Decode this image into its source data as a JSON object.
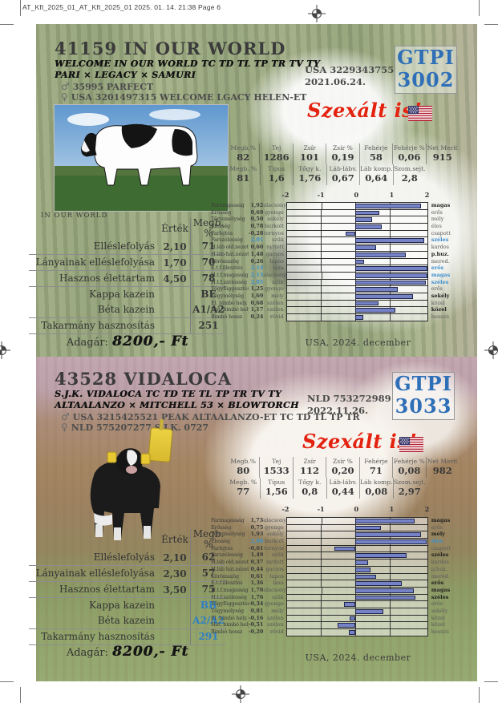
{
  "print_header": "AT_Kft_2025_01_AT_Kft_2025_01  2025. 01. 14.  21:38  Page 6",
  "symbols": {
    "male": "♂",
    "female": "♀"
  },
  "bulls": [
    {
      "title": "41159 IN OUR WORLD",
      "pedigree_line1": "WELCOME IN OUR WORLD TC TD TL TP TR TV TY",
      "pedigree_line2": "PARI × LEGACY × SAMURI",
      "sire": "35995 PARFECT",
      "dam": "USA 3201497315 WELCOME LGACY HELEN-ET",
      "registration": "USA 3229343755",
      "birth_date": "2021.06.24.",
      "gtpi_label": "GTPI",
      "gtpi_value": "3002",
      "sexed_note": "Szexált is!",
      "photo_caption": "IN OUR WORLD",
      "info": {
        "header_ertek": "Érték",
        "header_megb": "Megb. %",
        "rows": [
          {
            "label": "Elléslefolyás",
            "ertek": "2,10",
            "megb": "71",
            "rc": "rule",
            "vc": ""
          },
          {
            "label": "Lányainak elléslefolyása",
            "ertek": "1,70",
            "megb": "70",
            "rc": "rule",
            "vc": ""
          },
          {
            "label": "Hasznos élettartam",
            "ertek": "4,50",
            "megb": "78",
            "rc": "rule",
            "vc": ""
          },
          {
            "label": "Kappa kazein",
            "ertek": "",
            "megb": "BE",
            "rc": "",
            "vc": ""
          },
          {
            "label": "Béta kazein",
            "ertek": "",
            "megb": "A1/A2",
            "rc": "rule",
            "vc": ""
          },
          {
            "label": "Takarmány hasznosítás",
            "ertek": "",
            "megb": "251",
            "rc": "rule",
            "vc": ""
          }
        ],
        "price_label": "Adagár:",
        "price_value": "8200,- Ft"
      },
      "stats": {
        "row1": [
          {
            "label": "Megb.%",
            "value": "82"
          },
          {
            "label": "Tej",
            "value": "1286"
          },
          {
            "label": "Zsír",
            "value": "101"
          },
          {
            "label": "Zsír %",
            "value": "0,19"
          },
          {
            "label": "Fehérje",
            "value": "58"
          },
          {
            "label": "Fehérje %",
            "value": "0,06"
          },
          {
            "label": "Net Merit",
            "value": "915"
          }
        ],
        "row2": [
          {
            "label": "Megb. %",
            "value": "81"
          },
          {
            "label": "Típus",
            "value": "1,6"
          },
          {
            "label": "Tőgy k.",
            "value": "1,76"
          },
          {
            "label": "Láb-lábv.",
            "value": "0,67"
          },
          {
            "label": "Láb komp.",
            "value": "0,64"
          },
          {
            "label": "Szom.sejt.",
            "value": "2,8"
          }
        ]
      },
      "chart": {
        "type": "bar",
        "ticks": [
          "-2",
          "-1",
          "0",
          "1",
          "2"
        ],
        "xlim": [
          -2,
          2.1
        ],
        "caption": "USA, 2024. december",
        "rows": [
          {
            "name": "Farmagasság",
            "value_text": "1,92",
            "value": 1.92,
            "low": "alacsony",
            "high": "magas",
            "emph": "bold"
          },
          {
            "name": "Erősség",
            "value_text": "0,69",
            "value": 0.69,
            "low": "gyenge",
            "high": "erős",
            "emph": ""
          },
          {
            "name": "Törzsmélység",
            "value_text": "0,50",
            "value": 0.5,
            "low": "sekély",
            "high": "mély",
            "emph": ""
          },
          {
            "name": "Élesség",
            "value_text": "0,78",
            "value": 0.78,
            "low": "burkolt",
            "high": "éles",
            "emph": ""
          },
          {
            "name": "Farlejtés",
            "value_text": "-0,28",
            "value": -0.28,
            "low": "tornyos",
            "high": "csapott",
            "emph": ""
          },
          {
            "name": "Farszélesség",
            "value_text": "2,01",
            "value": 2.01,
            "low": "szűk",
            "high": "széles",
            "emph": "blue"
          },
          {
            "name": "H.láb old.nézet",
            "value_text": "0,60",
            "value": 0.6,
            "low": "nyitott",
            "high": "kardos",
            "emph": ""
          },
          {
            "name": "H.láb hát.nézet",
            "value_text": "1,48",
            "value": 1.48,
            "low": "gacsos",
            "high": "p.huz.",
            "emph": "bold"
          },
          {
            "name": "Körömszög",
            "value_text": "0,26",
            "value": 0.26,
            "low": "lapos",
            "high": "mered.",
            "emph": ""
          },
          {
            "name": "É.t.f.illesztés",
            "value_text": "2,14",
            "value": 2.14,
            "low": "laza",
            "high": "erős",
            "emph": "blue"
          },
          {
            "name": "H.t.f.magasság",
            "value_text": "2,13",
            "value": 2.13,
            "low": "alacsony",
            "high": "magas",
            "emph": "blue"
          },
          {
            "name": "H.t.f.szélesség",
            "value_text": "2,05",
            "value": 2.05,
            "low": "szűk",
            "high": "széles",
            "emph": "blue"
          },
          {
            "name": "Tőgyfüggesztés",
            "value_text": "1,25",
            "value": 1.25,
            "low": "gyenge",
            "high": "erős",
            "emph": ""
          },
          {
            "name": "Tőgymélység",
            "value_text": "1,69",
            "value": 1.69,
            "low": "mély",
            "high": "sekély",
            "emph": "bold"
          },
          {
            "name": "El. bimbó hely.",
            "value_text": "0,68",
            "value": 0.68,
            "low": "szélen",
            "high": "közel",
            "emph": ""
          },
          {
            "name": "Hát. bimbó hely.",
            "value_text": "1,17",
            "value": 1.17,
            "low": "szélen",
            "high": "közel",
            "emph": "bold"
          },
          {
            "name": "Bimbó hossz",
            "value_text": "0,24",
            "value": 0.24,
            "low": "rövid",
            "high": "hosszú",
            "emph": ""
          }
        ]
      }
    },
    {
      "title": "43528 VIDALOCA",
      "pedigree_line1": "S.J.K. VIDALOCA TC TD TE TL TP TR TV TY",
      "pedigree_line2": "ALTAALANZO × MITCHELL 53 × BLOWTORCH",
      "sire": "USA 3215425521 PEAK ALTAALANZO-ET TC TD TL TP TR",
      "dam": "NLD 575207277 S.J.K. 0727",
      "registration": "NLD 753272989",
      "birth_date": "2022.11.26.",
      "gtpi_label": "GTPI",
      "gtpi_value": "3033",
      "sexed_note": "Szexált is!",
      "photo_caption": "",
      "info": {
        "header_ertek": "Érték",
        "header_megb": "Megb. %",
        "rows": [
          {
            "label": "Elléslefolyás",
            "ertek": "2,10",
            "megb": "62",
            "rc": "rule",
            "vc": ""
          },
          {
            "label": "Lányainak elléslefolyása",
            "ertek": "2,30",
            "megb": "57",
            "rc": "rule",
            "vc": ""
          },
          {
            "label": "Hasznos élettartam",
            "ertek": "3,50",
            "megb": "75",
            "rc": "rule",
            "vc": ""
          },
          {
            "label": "Kappa kazein",
            "ertek": "",
            "megb": "BB",
            "rc": "",
            "vc": "blue"
          },
          {
            "label": "Béta kazein",
            "ertek": "",
            "megb": "A2/A2",
            "rc": "rule",
            "vc": "blue"
          },
          {
            "label": "Takarmány hasznosítás",
            "ertek": "",
            "megb": "291",
            "rc": "rule",
            "vc": "blue"
          }
        ],
        "price_label": "Adagár:",
        "price_value": "8200,- Ft"
      },
      "stats": {
        "row1": [
          {
            "label": "Megb.%",
            "value": "80"
          },
          {
            "label": "Tej",
            "value": "1533"
          },
          {
            "label": "Zsír",
            "value": "112"
          },
          {
            "label": "Zsír %",
            "value": "0,20"
          },
          {
            "label": "Fehérje",
            "value": "71"
          },
          {
            "label": "Fehérje %",
            "value": "0,08"
          },
          {
            "label": "Net Merit",
            "value": "982"
          }
        ],
        "row2": [
          {
            "label": "Megb. %",
            "value": "77"
          },
          {
            "label": "Típus",
            "value": "1,56"
          },
          {
            "label": "Tőgy k.",
            "value": "0,8"
          },
          {
            "label": "Láb-lábv.",
            "value": "0,44"
          },
          {
            "label": "Láb komp.",
            "value": "0,08"
          },
          {
            "label": "Szom.sejt.",
            "value": "2,97"
          }
        ]
      },
      "chart": {
        "type": "bar",
        "ticks": [
          "-2",
          "-1",
          "0",
          "1",
          "2"
        ],
        "xlim": [
          -2,
          2.1
        ],
        "caption": "USA, 2024. december",
        "rows": [
          {
            "name": "Farmagasság",
            "value_text": "1,73",
            "value": 1.73,
            "low": "alacsony",
            "high": "magas",
            "emph": "bold"
          },
          {
            "name": "Erősség",
            "value_text": "0,75",
            "value": 0.75,
            "low": "gyenge",
            "high": "erős",
            "emph": ""
          },
          {
            "name": "Törzsmélység",
            "value_text": "1,93",
            "value": 1.93,
            "low": "sekély",
            "high": "mély",
            "emph": "bold"
          },
          {
            "name": "Élesség",
            "value_text": "2,08",
            "value": 2.08,
            "low": "burkolt",
            "high": "éles",
            "emph": "blue"
          },
          {
            "name": "Farlejtés",
            "value_text": "-0,61",
            "value": -0.61,
            "low": "tornyos",
            "high": "csapott",
            "emph": ""
          },
          {
            "name": "Farszélesség",
            "value_text": "1,49",
            "value": 1.49,
            "low": "szűk",
            "high": "széles",
            "emph": "bold"
          },
          {
            "name": "H.láb old.nézet",
            "value_text": "0,37",
            "value": 0.37,
            "low": "nyitott",
            "high": "kardos",
            "emph": ""
          },
          {
            "name": "H.láb hát.nézet",
            "value_text": "0,44",
            "value": 0.44,
            "low": "gacsos",
            "high": "p.huz.",
            "emph": ""
          },
          {
            "name": "Körömszög",
            "value_text": "0,61",
            "value": 0.61,
            "low": "lapos",
            "high": "mered.",
            "emph": ""
          },
          {
            "name": "É.t.f.illesztés",
            "value_text": "1,36",
            "value": 1.36,
            "low": "laza",
            "high": "erős",
            "emph": "bold"
          },
          {
            "name": "H.t.f.magasság",
            "value_text": "1,70",
            "value": 1.7,
            "low": "alacsony",
            "high": "magas",
            "emph": "bold"
          },
          {
            "name": "H.t.f.szélesség",
            "value_text": "1,76",
            "value": 1.76,
            "low": "szűk",
            "high": "széles",
            "emph": "bold"
          },
          {
            "name": "Tőgyfüggesztés",
            "value_text": "-0,34",
            "value": -0.34,
            "low": "gyenge",
            "high": "erős",
            "emph": ""
          },
          {
            "name": "Tőgymélység",
            "value_text": "0,81",
            "value": 0.81,
            "low": "mély",
            "high": "sekély",
            "emph": ""
          },
          {
            "name": "El. bimbó hely.",
            "value_text": "-0,16",
            "value": -0.16,
            "low": "szélen",
            "high": "közel",
            "emph": ""
          },
          {
            "name": "Hát. bimbó hely.",
            "value_text": "-0,51",
            "value": -0.51,
            "low": "szélen",
            "high": "közel",
            "emph": ""
          },
          {
            "name": "Bimbó hossz",
            "value_text": "-0,20",
            "value": -0.2,
            "low": "rövid",
            "high": "hosszú",
            "emph": ""
          }
        ]
      }
    }
  ]
}
